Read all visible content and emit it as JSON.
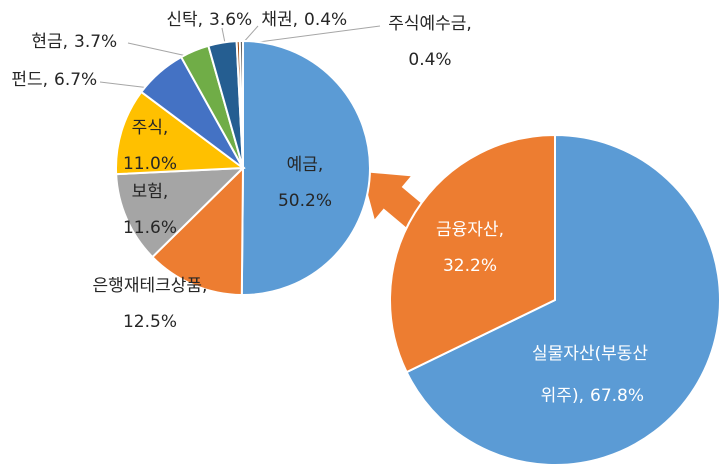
{
  "chart_data": [
    {
      "type": "pie",
      "categories": [
        "예금,",
        "은행재테크상품,",
        "보험,",
        "주식,",
        "펀드,",
        "현금,",
        "신탁,",
        "채권,",
        "주식예수금,"
      ],
      "values": [
        50.2,
        12.5,
        11.6,
        11.0,
        6.7,
        3.7,
        3.6,
        0.4,
        0.4
      ],
      "value_labels": [
        "50.2%",
        "12.5%",
        "11.6%",
        "11.0%",
        "6.7%",
        "3.7%",
        "3.6%",
        "0.4%",
        "0.4%"
      ],
      "colors": [
        "#5b9bd5",
        "#ed7d31",
        "#a5a5a5",
        "#ffc000",
        "#4472c4",
        "#70ad47",
        "#255e91",
        "#9e480e",
        "#636363"
      ]
    },
    {
      "type": "pie",
      "categories": [
        "실물자산(부동산 위주),",
        "금융자산,"
      ],
      "values": [
        67.8,
        32.2
      ],
      "value_labels": [
        "67.8%",
        "32.2%"
      ],
      "colors": [
        "#5b9bd5",
        "#ed7d31"
      ]
    }
  ]
}
